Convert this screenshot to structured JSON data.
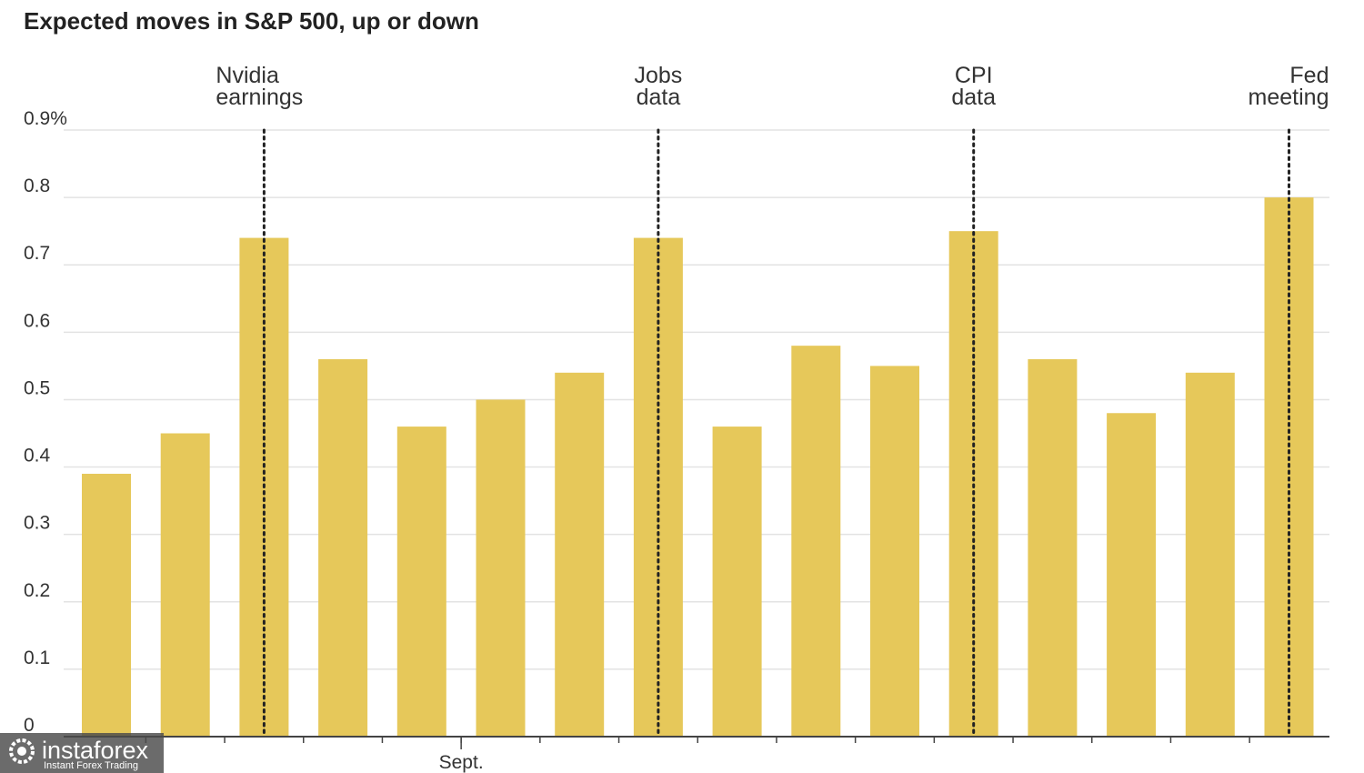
{
  "chart_data": {
    "type": "bar",
    "title": "Expected moves in S&P 500, up or down",
    "xlabel": "",
    "ylabel": "",
    "ylim": [
      0,
      0.9
    ],
    "y_ticks": [
      {
        "value": 0,
        "label": "0"
      },
      {
        "value": 0.1,
        "label": "0.1"
      },
      {
        "value": 0.2,
        "label": "0.2"
      },
      {
        "value": 0.3,
        "label": "0.3"
      },
      {
        "value": 0.4,
        "label": "0.4"
      },
      {
        "value": 0.5,
        "label": "0.5"
      },
      {
        "value": 0.6,
        "label": "0.6"
      },
      {
        "value": 0.7,
        "label": "0.7"
      },
      {
        "value": 0.8,
        "label": "0.8"
      },
      {
        "value": 0.9,
        "label": "0.9%"
      }
    ],
    "grid": true,
    "bar_color": "#e6c85a",
    "values": [
      0.39,
      0.45,
      0.74,
      0.56,
      0.46,
      0.5,
      0.54,
      0.74,
      0.46,
      0.58,
      0.55,
      0.75,
      0.56,
      0.48,
      0.54,
      0.8
    ],
    "x_labels": [
      {
        "index": 4,
        "text": "Sept."
      }
    ],
    "events": [
      {
        "index": 2,
        "lines": [
          "Nvidia",
          "earnings"
        ],
        "align": "start"
      },
      {
        "index": 7,
        "lines": [
          "Jobs",
          "data"
        ],
        "align": "middle"
      },
      {
        "index": 11,
        "lines": [
          "CPI",
          "data"
        ],
        "align": "middle"
      },
      {
        "index": 15,
        "lines": [
          "Fed",
          "meeting"
        ],
        "align": "end"
      }
    ]
  },
  "watermark": {
    "name": "instaforex",
    "tagline": "Instant Forex Trading"
  }
}
